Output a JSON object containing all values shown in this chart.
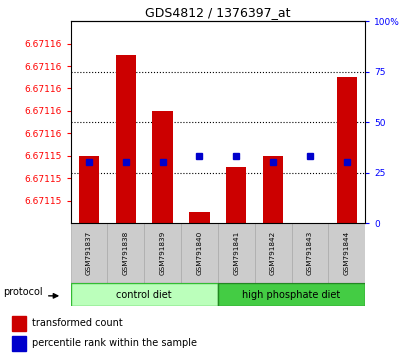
{
  "title": "GDS4812 / 1376397_at",
  "samples": [
    "GSM791837",
    "GSM791838",
    "GSM791839",
    "GSM791840",
    "GSM791841",
    "GSM791842",
    "GSM791843",
    "GSM791844"
  ],
  "bar_tops": [
    6.671154,
    6.671163,
    6.671158,
    6.671149,
    6.671153,
    6.671154,
    6.671146,
    6.671161
  ],
  "percentile_values": [
    30,
    30,
    30,
    33,
    33,
    30,
    33,
    30
  ],
  "base_value": 6.671148,
  "ymin": 6.671148,
  "ymax": 6.671166,
  "left_tick_vals": [
    6.67115,
    6.671152,
    6.671154,
    6.671156,
    6.671158,
    6.67116,
    6.671162,
    6.671164
  ],
  "left_tick_labels": [
    "6.67115",
    "6.67115",
    "6.67115",
    "6.67116",
    "6.67116",
    "6.67116",
    "6.67116",
    "6.67116"
  ],
  "right_ticks": [
    0,
    25,
    50,
    75,
    100
  ],
  "bar_color": "#cc0000",
  "dot_color": "#0000cc",
  "bg_color": "#ffffff",
  "label_bg": "#cccccc",
  "control_diet_color": "#bbffbb",
  "high_phosphate_color": "#44cc44"
}
